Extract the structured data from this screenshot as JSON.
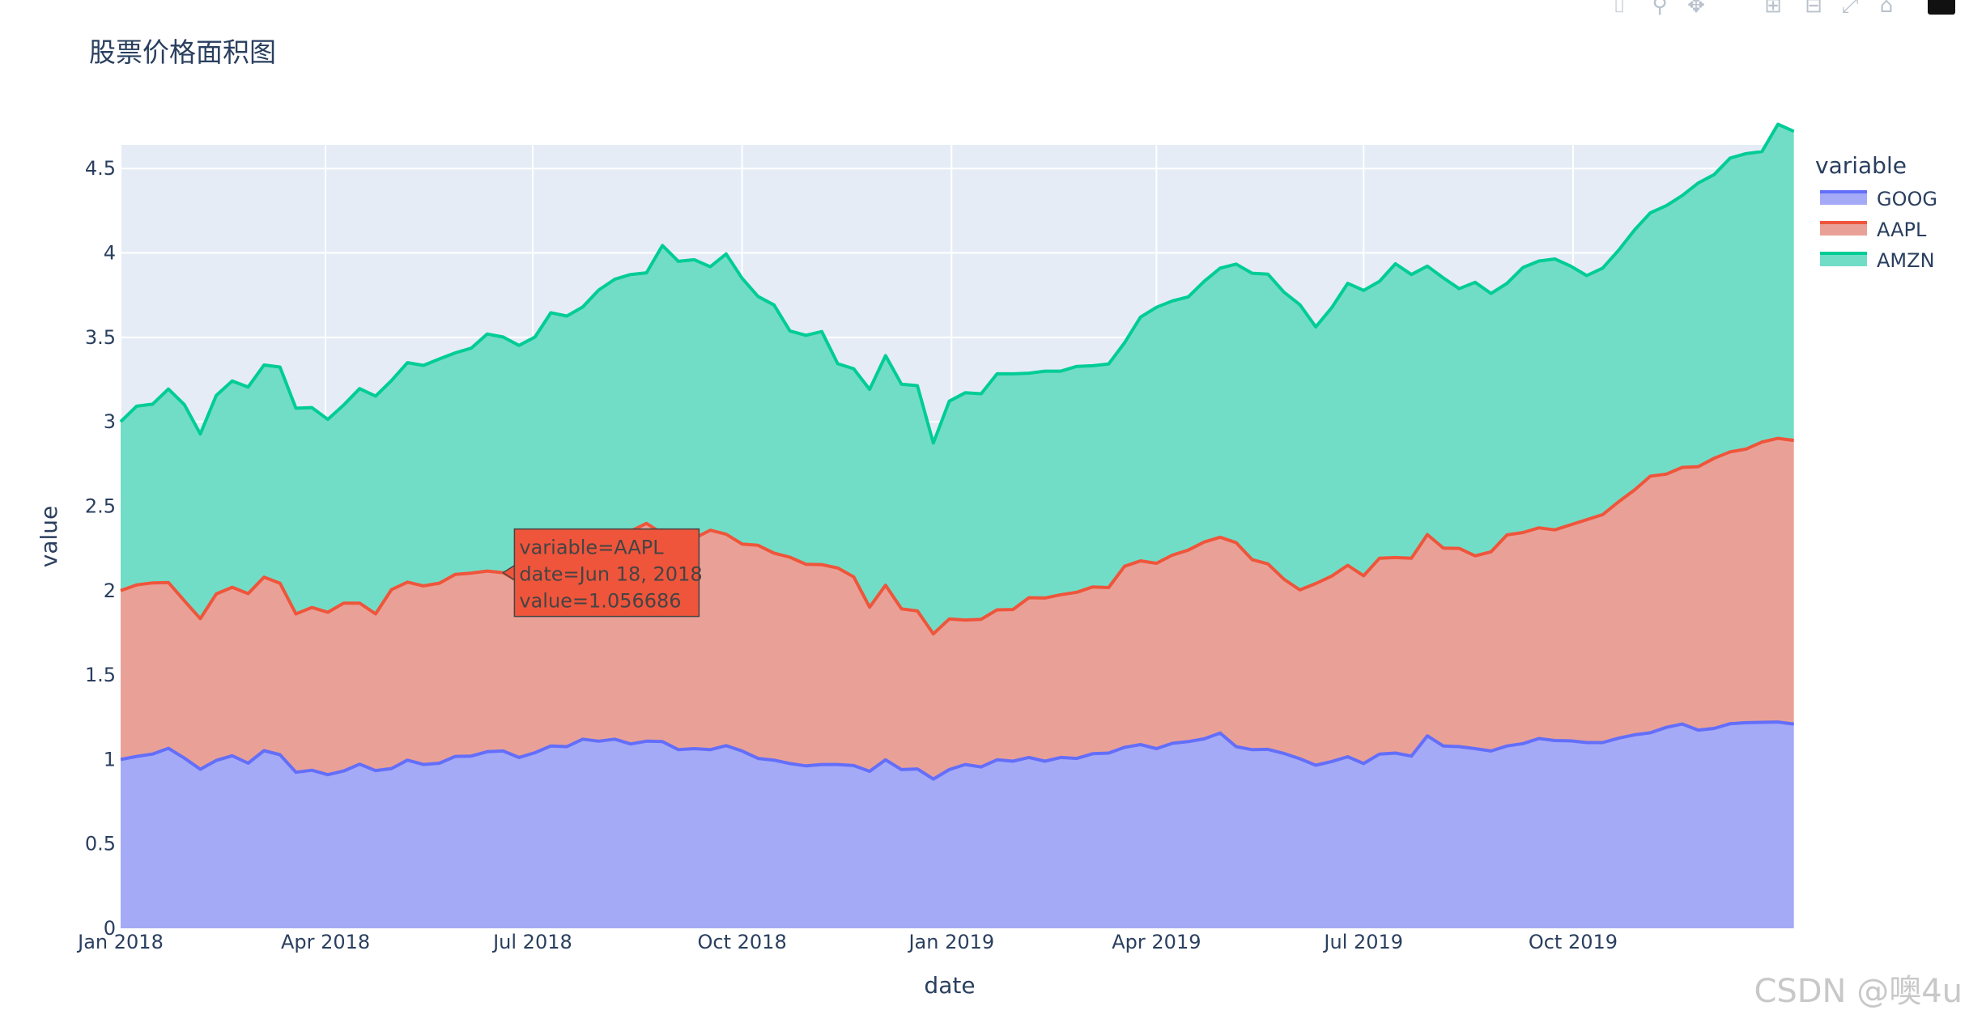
{
  "toolbar": {
    "buttons": [
      {
        "name": "camera-icon",
        "glyph": "⌷"
      },
      {
        "name": "zoom-icon",
        "glyph": "⚲"
      },
      {
        "name": "pan-icon",
        "glyph": "✥"
      },
      {
        "name": "zoom-in-icon",
        "glyph": "⊞"
      },
      {
        "name": "zoom-out-icon",
        "glyph": "⊟"
      },
      {
        "name": "autoscale-icon",
        "glyph": "⤢"
      },
      {
        "name": "home-icon",
        "glyph": "⌂"
      }
    ],
    "logo": "plotly-logo-icon"
  },
  "watermark": "CSDN @噢4u",
  "chart_data": {
    "type": "area",
    "title": "股票价格面积图",
    "xlabel": "date",
    "ylabel": "value",
    "legend_title": "variable",
    "legend_position": "right",
    "grid": true,
    "stacked": true,
    "x_start": "2018-01-01",
    "x_frequency": "weekly",
    "x_ticks": [
      {
        "date": "2018-01-01",
        "label": "Jan 2018"
      },
      {
        "date": "2018-04-01",
        "label": "Apr 2018"
      },
      {
        "date": "2018-07-01",
        "label": "Jul 2018"
      },
      {
        "date": "2018-10-01",
        "label": "Oct 2018"
      },
      {
        "date": "2019-01-01",
        "label": "Jan 2019"
      },
      {
        "date": "2019-04-01",
        "label": "Apr 2019"
      },
      {
        "date": "2019-07-01",
        "label": "Jul 2019"
      },
      {
        "date": "2019-10-01",
        "label": "Oct 2019"
      }
    ],
    "x_range": [
      "2018-01-01",
      "2019-12-30"
    ],
    "y_ticks": [
      0,
      0.5,
      1,
      1.5,
      2,
      2.5,
      3,
      3.5,
      4,
      4.5
    ],
    "ylim": [
      0,
      4.64
    ],
    "series": [
      {
        "name": "GOOG",
        "line_color": "#636efa",
        "fill_color": "#a4aaf6",
        "values": [
          1.0,
          1.018,
          1.032,
          1.066,
          1.008,
          0.942,
          0.994,
          1.022,
          0.978,
          1.052,
          1.028,
          0.924,
          0.936,
          0.91,
          0.932,
          0.972,
          0.934,
          0.946,
          0.996,
          0.97,
          0.978,
          1.018,
          1.02,
          1.046,
          1.05,
          1.012,
          1.04,
          1.08,
          1.076,
          1.12,
          1.108,
          1.12,
          1.092,
          1.108,
          1.106,
          1.058,
          1.064,
          1.058,
          1.082,
          1.05,
          1.006,
          0.996,
          0.976,
          0.962,
          0.97,
          0.97,
          0.964,
          0.93,
          0.998,
          0.94,
          0.944,
          0.884,
          0.94,
          0.97,
          0.956,
          0.998,
          0.99,
          1.012,
          0.99,
          1.012,
          1.006,
          1.034,
          1.038,
          1.072,
          1.088,
          1.064,
          1.096,
          1.106,
          1.122,
          1.156,
          1.076,
          1.058,
          1.06,
          1.036,
          1.004,
          0.966,
          0.988,
          1.016,
          0.976,
          1.032,
          1.038,
          1.02,
          1.14,
          1.08,
          1.076,
          1.064,
          1.05,
          1.08,
          1.094,
          1.124,
          1.112,
          1.11,
          1.1,
          1.1,
          1.126,
          1.146,
          1.158,
          1.19,
          1.21,
          1.174,
          1.184,
          1.212,
          1.218,
          1.22,
          1.222,
          1.21
        ]
      },
      {
        "name": "AAPL",
        "line_color": "#ef553b",
        "fill_color": "#e9a197",
        "values": [
          1.0,
          1.016,
          1.014,
          0.982,
          0.932,
          0.892,
          0.986,
          0.998,
          1.004,
          1.028,
          1.016,
          0.938,
          0.964,
          0.962,
          0.994,
          0.954,
          0.928,
          1.06,
          1.054,
          1.058,
          1.066,
          1.078,
          1.084,
          1.07,
          1.056,
          1.04,
          1.018,
          1.04,
          1.05,
          1.0,
          0.986,
          1.02,
          1.26,
          1.29,
          1.232,
          1.272,
          1.246,
          1.3,
          1.252,
          1.226,
          1.262,
          1.226,
          1.222,
          1.194,
          1.184,
          1.164,
          1.118,
          0.972,
          1.034,
          0.952,
          0.936,
          0.86,
          0.892,
          0.856,
          0.874,
          0.888,
          0.898,
          0.946,
          0.966,
          0.964,
          0.984,
          0.988,
          0.98,
          1.072,
          1.088,
          1.098,
          1.114,
          1.134,
          1.166,
          1.16,
          1.208,
          1.126,
          1.098,
          1.032,
          1.0,
          1.076,
          1.098,
          1.134,
          1.112,
          1.16,
          1.158,
          1.172,
          1.192,
          1.172,
          1.174,
          1.142,
          1.18,
          1.25,
          1.25,
          1.248,
          1.248,
          1.28,
          1.32,
          1.35,
          1.4,
          1.45,
          1.52,
          1.5,
          1.52,
          1.56,
          1.6,
          1.61,
          1.62,
          1.66,
          1.68,
          1.68
        ]
      },
      {
        "name": "AMZN",
        "line_color": "#00cc96",
        "fill_color": "#72ddc6",
        "values": [
          1.0,
          1.058,
          1.058,
          1.146,
          1.162,
          1.094,
          1.176,
          1.222,
          1.224,
          1.256,
          1.28,
          1.218,
          1.184,
          1.142,
          1.174,
          1.27,
          1.29,
          1.238,
          1.3,
          1.306,
          1.328,
          1.312,
          1.332,
          1.404,
          1.396,
          1.4,
          1.444,
          1.526,
          1.5,
          1.56,
          1.686,
          1.704,
          1.52,
          1.484,
          1.706,
          1.62,
          1.65,
          1.56,
          1.66,
          1.574,
          1.474,
          1.47,
          1.34,
          1.356,
          1.38,
          1.21,
          1.232,
          1.29,
          1.36,
          1.33,
          1.334,
          1.13,
          1.29,
          1.346,
          1.336,
          1.398,
          1.396,
          1.33,
          1.344,
          1.324,
          1.338,
          1.31,
          1.324,
          1.324,
          1.444,
          1.516,
          1.506,
          1.5,
          1.544,
          1.594,
          1.65,
          1.696,
          1.716,
          1.7,
          1.69,
          1.52,
          1.59,
          1.67,
          1.69,
          1.64,
          1.74,
          1.68,
          1.59,
          1.6,
          1.538,
          1.62,
          1.53,
          1.49,
          1.57,
          1.58,
          1.604,
          1.532,
          1.446,
          1.46,
          1.49,
          1.54,
          1.56,
          1.59,
          1.61,
          1.68,
          1.68,
          1.74,
          1.75,
          1.72,
          1.86,
          1.83
        ]
      }
    ],
    "hover": {
      "series": "AAPL",
      "index": 24,
      "lines": [
        "variable=AAPL",
        "date=Jun 18, 2018",
        "value=1.056686"
      ]
    }
  }
}
